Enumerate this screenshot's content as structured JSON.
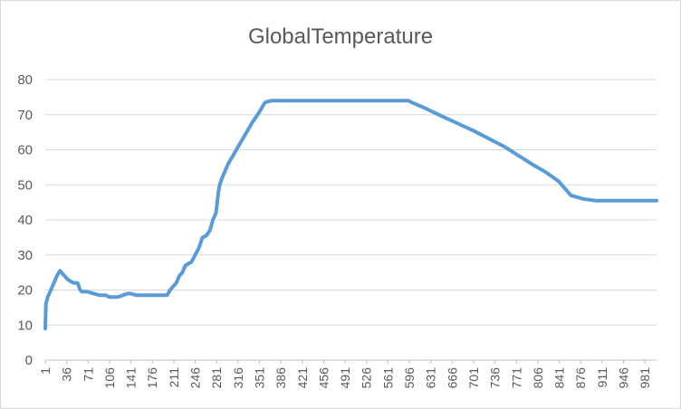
{
  "chart_data": {
    "type": "line",
    "title": "GlobalTemperature",
    "xlabel": "",
    "ylabel": "",
    "ylim": [
      0,
      80
    ],
    "yticks": [
      0,
      10,
      20,
      30,
      40,
      50,
      60,
      70,
      80
    ],
    "xlim": [
      1,
      1000
    ],
    "xticks": [
      1,
      36,
      71,
      106,
      141,
      176,
      211,
      246,
      281,
      316,
      351,
      386,
      421,
      456,
      491,
      526,
      561,
      596,
      631,
      666,
      701,
      736,
      771,
      806,
      841,
      876,
      911,
      946,
      981
    ],
    "grid": true,
    "legend": "none",
    "colors": {
      "series": "#5b9bd5",
      "grid": "#d9d9d9",
      "axis": "#bfbfbf",
      "text": "#595959"
    },
    "series": [
      {
        "x": [
          1,
          2,
          5,
          10,
          15,
          20,
          25,
          30,
          35,
          38,
          42,
          48,
          54,
          58,
          61,
          65,
          70,
          80,
          90,
          100,
          106,
          112,
          120,
          128,
          136,
          140,
          150,
          160,
          170,
          176,
          186,
          195,
          200,
          205,
          210,
          215,
          220,
          225,
          230,
          235,
          240,
          246,
          252,
          258,
          264,
          270,
          275,
          280,
          284,
          286,
          288,
          290,
          295,
          300,
          310,
          320,
          330,
          340,
          350,
          360,
          370,
          380,
          390,
          395,
          400,
          420,
          450,
          500,
          550,
          595,
          600,
          620,
          650,
          700,
          750,
          800,
          820,
          840,
          850,
          860,
          870,
          880,
          900,
          930,
          960,
          990,
          1000
        ],
        "y": [
          9,
          16,
          18,
          20,
          22,
          24,
          25.5,
          24.5,
          23.5,
          23,
          22.5,
          22,
          22,
          20,
          19.5,
          19.5,
          19.5,
          19,
          18.5,
          18.5,
          18,
          18,
          18,
          18.5,
          19,
          19,
          18.5,
          18.5,
          18.5,
          18.5,
          18.5,
          18.5,
          18.5,
          20,
          21,
          22,
          24,
          25,
          27,
          27.5,
          28,
          30,
          32,
          35,
          35.5,
          37,
          40,
          42,
          48,
          50,
          51,
          52,
          54,
          56,
          59,
          62,
          65,
          68,
          70.5,
          73.5,
          74,
          74,
          74,
          74,
          74,
          74,
          74,
          74,
          74,
          74,
          73.5,
          72,
          69.5,
          65.5,
          61,
          55.5,
          53.5,
          51,
          49,
          47,
          46.5,
          46,
          45.5,
          45.5,
          45.5,
          45.5,
          45.5
        ]
      }
    ]
  }
}
